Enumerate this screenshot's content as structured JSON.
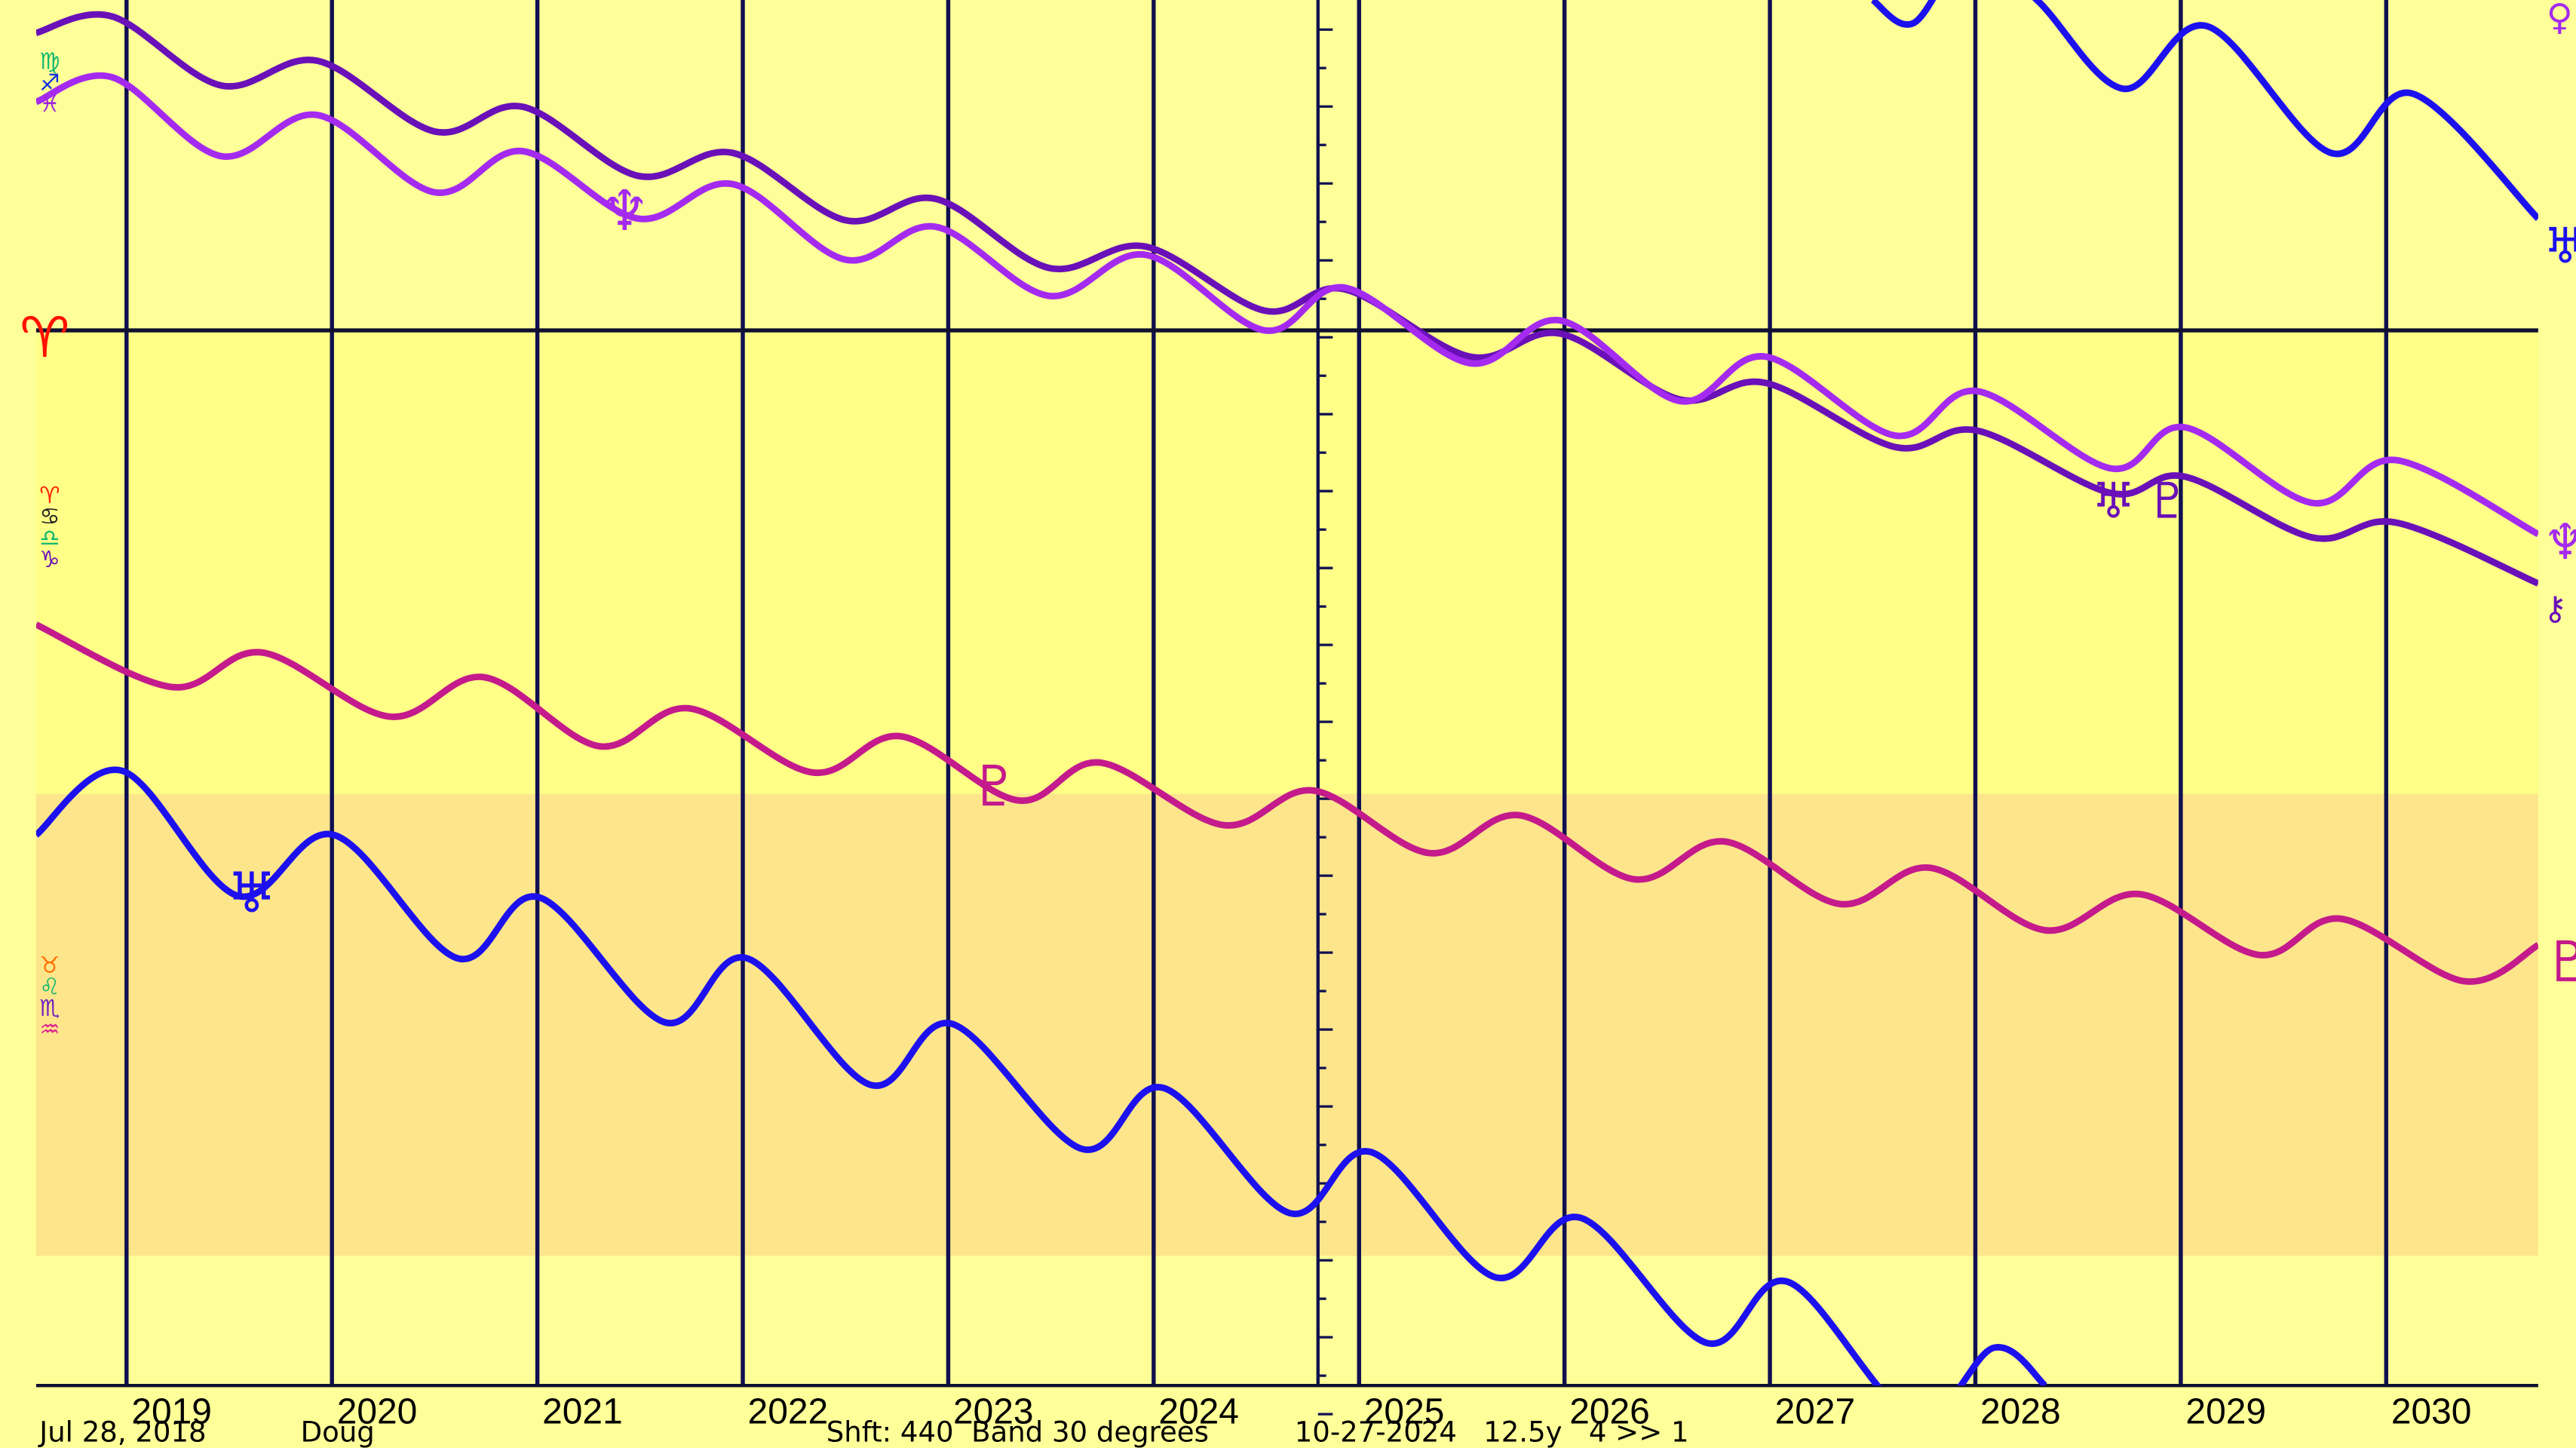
{
  "chart_data": {
    "type": "line",
    "xlim": [
      2018.56,
      2030.74
    ],
    "ylim": [
      0,
      843
    ],
    "xticks": [
      2019,
      2020,
      2021,
      2022,
      2023,
      2024,
      2025,
      2026,
      2027,
      2028,
      2029,
      2030
    ],
    "now_x": 2024.8,
    "reference_y": 642,
    "band": [
      79,
      360
    ],
    "aries_glyph": "♈",
    "left_glyphs": [
      [
        {
          "text": "♍",
          "color": "#10b870"
        },
        {
          "text": "♐",
          "color": "#1030e0"
        },
        {
          "text": "♓",
          "color": "#a020e0"
        }
      ],
      [
        {
          "text": "♈",
          "color": "#ff2000"
        },
        {
          "text": "♋",
          "color": "#202020"
        },
        {
          "text": "♎",
          "color": "#10b870"
        },
        {
          "text": "♑",
          "color": "#6a10b8"
        }
      ],
      [
        {
          "text": "♉",
          "color": "#ff7000"
        },
        {
          "text": "♌",
          "color": "#10b870"
        },
        {
          "text": "♏",
          "color": "#7020c0"
        },
        {
          "text": "♒",
          "color": "#e02090"
        }
      ]
    ],
    "planet_labels": [
      {
        "text": "♆",
        "color": "#a52af0"
      },
      {
        "text": "♅",
        "color": "#1c10ee"
      },
      {
        "text": "♇",
        "color": "#c41a8c"
      },
      {
        "text": "♅",
        "color": "#6a10b8"
      },
      {
        "text": "♇",
        "color": "#6a10b8"
      },
      {
        "text": "♅",
        "color": "#1c10ee"
      },
      {
        "text": "♆",
        "color": "#a52af0"
      },
      {
        "text": "⚷",
        "color": "#6a10b8"
      },
      {
        "text": "♇",
        "color": "#c41a8c"
      },
      {
        "text": "♀",
        "color": "#a52af0"
      }
    ],
    "series": [
      {
        "color": "#6a10b8",
        "x": [
          2018.56,
          2018.93,
          2019.46,
          2019.93,
          2020.5,
          2020.93,
          2021.49,
          2021.95,
          2022.5,
          2022.94,
          2023.49,
          2023.96,
          2024.54,
          2024.93,
          2025.54,
          2025.98,
          2026.56,
          2026.98,
          2027.61,
          2028.01,
          2028.66,
          2029.02,
          2029.64,
          2030.05,
          2030.74
        ],
        "values": [
          823,
          833,
          791,
          806,
          763,
          778,
          736,
          750,
          709,
          722,
          680,
          693,
          654,
          667,
          626,
          640,
          600,
          610,
          571,
          581,
          543,
          553,
          516,
          525,
          488
        ]
      },
      {
        "color": "#a52af0",
        "x": [
          2018.56,
          2018.93,
          2019.46,
          2019.93,
          2020.5,
          2020.93,
          2021.49,
          2021.95,
          2022.5,
          2022.94,
          2023.49,
          2023.96,
          2024.54,
          2024.93,
          2025.54,
          2025.98,
          2026.56,
          2026.98,
          2027.61,
          2028.01,
          2028.66,
          2029.02,
          2029.64,
          2030.05,
          2030.74
        ],
        "values": [
          781,
          796,
          748,
          773,
          726,
          751,
          710,
          731,
          685,
          705,
          663,
          688,
          642,
          668,
          622,
          648,
          599,
          626,
          578,
          605,
          558,
          583,
          537,
          563,
          518
        ]
      },
      {
        "color": "#c41a8c",
        "x": [
          2018.56,
          2019.22,
          2019.66,
          2020.28,
          2020.74,
          2021.3,
          2021.74,
          2022.34,
          2022.77,
          2023.34,
          2023.74,
          2024.34,
          2024.78,
          2025.34,
          2025.78,
          2026.34,
          2026.78,
          2027.34,
          2027.78,
          2028.34,
          2028.8,
          2029.38,
          2029.78,
          2030.38,
          2030.74
        ],
        "values": [
          463,
          425,
          446,
          407,
          431,
          389,
          412,
          373,
          395,
          356,
          379,
          341,
          362,
          324,
          347,
          308,
          331,
          293,
          315,
          277,
          299,
          262,
          284,
          246,
          268
        ]
      },
      {
        "color": "#1c10ee",
        "x": [
          2018.56,
          2018.98,
          2019.54,
          2020.01,
          2020.61,
          2021.01,
          2021.62,
          2022.02,
          2022.62,
          2023.02,
          2023.65,
          2024.05,
          2024.66,
          2025.06,
          2025.66,
          2026.08,
          2026.69,
          2027.09,
          2027.7,
          2028.09,
          2028.34
        ],
        "values": [
          335,
          374,
          298,
          335,
          260,
          297,
          221,
          260,
          183,
          220,
          144,
          181,
          105,
          142,
          66,
          102,
          26,
          63,
          -20,
          23,
          0
        ]
      },
      {
        "color": "#1c10ee",
        "x": [
          2027.5,
          2027.7,
          2027.98,
          2028.3,
          2028.72,
          2029.13,
          2029.73,
          2030.13,
          2030.74
        ],
        "values": [
          843,
          829,
          873,
          843,
          789,
          827,
          750,
          786,
          710
        ]
      }
    ],
    "footer": {
      "date": "Jul 28, 2018",
      "name": "Doug",
      "settings": "Shft: 440  Band 30 degrees",
      "info": "10-27-2024   12.5y   4 >> 1"
    }
  }
}
